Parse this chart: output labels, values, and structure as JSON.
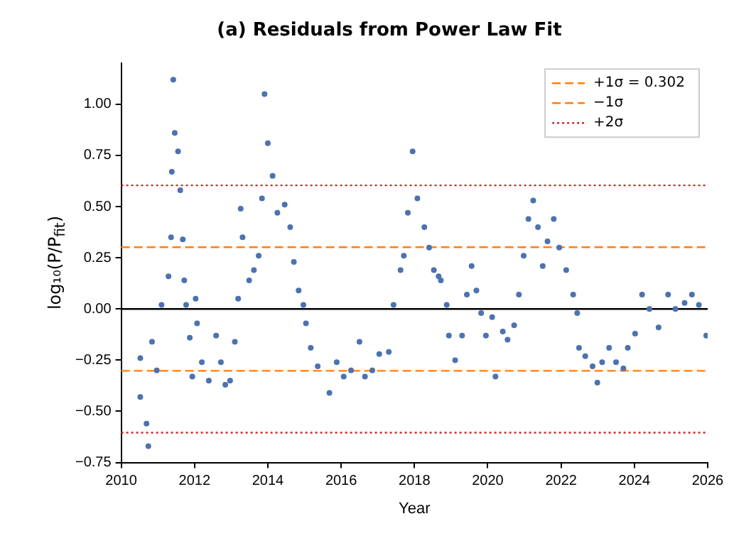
{
  "chart_data": {
    "type": "scatter",
    "title": "(a) Residuals from Power Law Fit",
    "xlabel": "Year",
    "ylabel": "log₁₀(P/P$_{fit}$)",
    "color": "#4c72b0",
    "marker": "circle",
    "grid": false,
    "legend": "top right",
    "xlim": [
      2010,
      2026
    ],
    "xticks": [
      2010,
      2012,
      2014,
      2016,
      2018,
      2020,
      2022,
      2024,
      2026
    ],
    "ylim": [
      -0.75,
      1.2
    ],
    "yticks": [
      {
        "value": -0.75,
        "label": "−0.75"
      },
      {
        "value": -0.5,
        "label": "−0.50"
      },
      {
        "value": -0.25,
        "label": "−0.25"
      },
      {
        "value": 0,
        "label": "0.00"
      },
      {
        "value": 0.25,
        "label": "0.25"
      },
      {
        "value": 0.5,
        "label": "0.50"
      },
      {
        "value": 0.75,
        "label": "0.75"
      },
      {
        "value": 1,
        "label": "1.00"
      }
    ],
    "x": [
      2010.52,
      2010.52,
      2010.69,
      2010.74,
      2010.84,
      2010.97,
      2011.1,
      2011.29,
      2011.36,
      2011.38,
      2011.42,
      2011.46,
      2011.55,
      2011.61,
      2011.68,
      2011.72,
      2011.77,
      2011.87,
      2011.94,
      2012.03,
      2012.07,
      2012.2,
      2012.39,
      2012.59,
      2012.72,
      2012.84,
      2012.97,
      2013.1,
      2013.19,
      2013.26,
      2013.31,
      2013.49,
      2013.62,
      2013.75,
      2013.84,
      2013.91,
      2014.0,
      2014.13,
      2014.26,
      2014.46,
      2014.61,
      2014.71,
      2014.84,
      2014.97,
      2015.04,
      2015.17,
      2015.36,
      2015.68,
      2015.88,
      2016.07,
      2016.27,
      2016.5,
      2016.65,
      2016.85,
      2017.04,
      2017.3,
      2017.43,
      2017.62,
      2017.71,
      2017.82,
      2017.95,
      2018.08,
      2018.27,
      2018.4,
      2018.53,
      2018.66,
      2018.72,
      2018.88,
      2018.94,
      2019.11,
      2019.3,
      2019.43,
      2019.56,
      2019.69,
      2019.82,
      2019.95,
      2020.12,
      2020.21,
      2020.41,
      2020.54,
      2020.72,
      2020.85,
      2020.98,
      2021.11,
      2021.24,
      2021.37,
      2021.5,
      2021.63,
      2021.8,
      2021.95,
      2022.14,
      2022.33,
      2022.44,
      2022.49,
      2022.66,
      2022.86,
      2022.99,
      2023.12,
      2023.31,
      2023.5,
      2023.7,
      2023.82,
      2024.02,
      2024.21,
      2024.41,
      2024.66,
      2024.92,
      2025.12,
      2025.37,
      2025.57,
      2025.76,
      2025.96
    ],
    "values": [
      -0.24,
      -0.43,
      -0.56,
      -0.67,
      -0.16,
      -0.3,
      0.02,
      0.16,
      0.35,
      0.67,
      1.12,
      0.86,
      0.77,
      0.58,
      0.34,
      0.14,
      0.02,
      -0.14,
      -0.33,
      0.05,
      -0.07,
      -0.26,
      -0.35,
      -0.13,
      -0.26,
      -0.37,
      -0.35,
      -0.16,
      0.05,
      0.49,
      0.35,
      0.14,
      0.19,
      0.26,
      0.54,
      1.05,
      0.81,
      0.65,
      0.47,
      0.51,
      0.4,
      0.23,
      0.09,
      0.02,
      -0.07,
      -0.19,
      -0.28,
      -0.41,
      -0.26,
      -0.33,
      -0.3,
      -0.16,
      -0.33,
      -0.3,
      -0.22,
      -0.21,
      0.02,
      0.19,
      0.26,
      0.47,
      0.77,
      0.54,
      0.4,
      0.3,
      0.19,
      0.16,
      0.14,
      0.02,
      -0.13,
      -0.25,
      -0.13,
      0.07,
      0.21,
      0.09,
      -0.02,
      -0.13,
      -0.04,
      -0.33,
      -0.11,
      -0.15,
      -0.08,
      0.07,
      0.26,
      0.44,
      0.53,
      0.4,
      0.21,
      0.33,
      0.44,
      0.3,
      0.19,
      0.07,
      -0.02,
      -0.19,
      -0.23,
      -0.28,
      -0.36,
      -0.26,
      -0.19,
      -0.26,
      -0.29,
      -0.19,
      -0.12,
      0.07,
      0,
      -0.09,
      0.07,
      0,
      0.03,
      0.07,
      0.02,
      -0.13
    ],
    "ref_lines": [
      {
        "axis": "y",
        "value": 0,
        "color": "#000000",
        "line_style": "solid"
      },
      {
        "axis": "y",
        "value": 0.302,
        "label": "+1σ = 0.302",
        "color": "#ff7f0e",
        "line_style": "dashed"
      },
      {
        "axis": "y",
        "value": -0.302,
        "label": "−1σ",
        "color": "#ff7f0e",
        "line_style": "dashed"
      },
      {
        "axis": "y",
        "value": 0.604,
        "label": "+2σ",
        "color": "#d62728",
        "line_style": "dotted"
      },
      {
        "axis": "y",
        "value": -0.604,
        "color": "#d62728",
        "line_style": "dotted"
      }
    ]
  }
}
